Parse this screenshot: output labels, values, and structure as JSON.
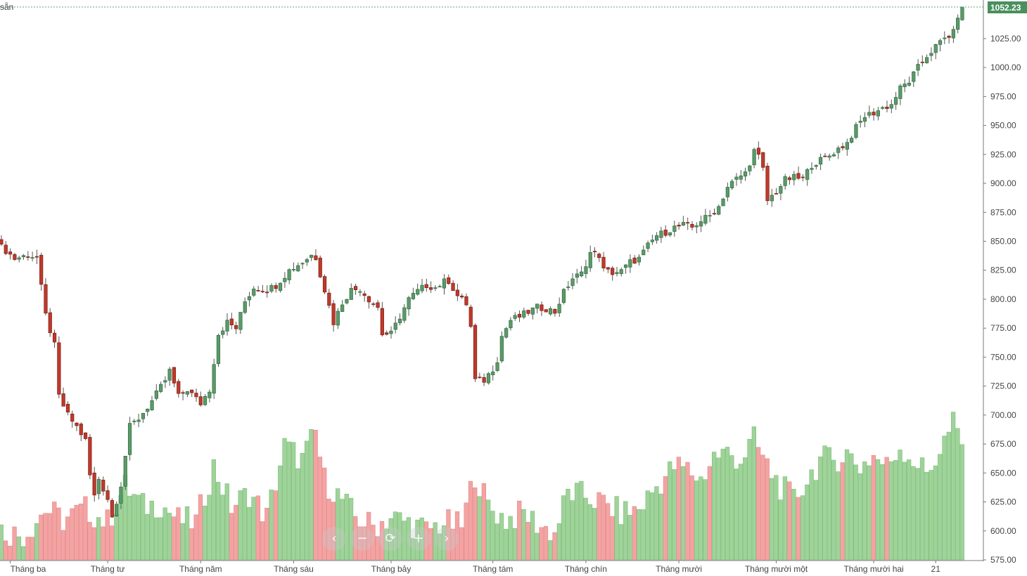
{
  "corner_label": "sẵn",
  "colors": {
    "up_body": "#5b9a6a",
    "up_border": "#2f6b3e",
    "down_body": "#c0392b",
    "down_border": "#7a1f15",
    "vol_up": "#9fd39a",
    "vol_down": "#f4a3a3",
    "price_line": "#5aa57a",
    "axis": "#7a7a7a"
  },
  "nav_buttons": [
    {
      "name": "scroll-left-button",
      "glyph": "‹"
    },
    {
      "name": "zoom-out-button",
      "glyph": "−"
    },
    {
      "name": "reset-button",
      "glyph": "⟳"
    },
    {
      "name": "zoom-in-button",
      "glyph": "+"
    },
    {
      "name": "scroll-right-button",
      "glyph": "›"
    }
  ],
  "chart_data": {
    "type": "candlestick",
    "last_price": 1052.23,
    "last_price_label": "1052.23",
    "y_ticks": [
      "1025.00",
      "1000.00",
      "975.00",
      "950.00",
      "925.00",
      "900.00",
      "875.00",
      "850.00",
      "825.00",
      "800.00",
      "775.00",
      "750.00",
      "725.00",
      "700.00",
      "675.00",
      "650.00",
      "625.00",
      "600.00",
      "575.00"
    ],
    "ylim": [
      575,
      1052.23
    ],
    "x_labels": [
      {
        "label": "Tháng ba",
        "index": 2
      },
      {
        "label": "Tháng tư",
        "index": 24
      },
      {
        "label": "Tháng năm",
        "index": 45
      },
      {
        "label": "Tháng sáu",
        "index": 66
      },
      {
        "label": "Tháng bảy",
        "index": 88
      },
      {
        "label": "Tháng tám",
        "index": 111
      },
      {
        "label": "Tháng chín",
        "index": 132
      },
      {
        "label": "Tháng mười",
        "index": 153
      },
      {
        "label": "Tháng mười một",
        "index": 175
      },
      {
        "label": "Tháng mười hai",
        "index": 197
      },
      {
        "label": "21",
        "index": 211
      }
    ],
    "key_closes": [
      [
        0,
        845
      ],
      [
        1,
        842
      ],
      [
        3,
        835
      ],
      [
        6,
        838
      ],
      [
        8,
        836
      ],
      [
        9,
        810
      ],
      [
        10,
        786
      ],
      [
        12,
        760
      ],
      [
        13,
        716
      ],
      [
        15,
        700
      ],
      [
        17,
        690
      ],
      [
        19,
        678
      ],
      [
        20,
        648
      ],
      [
        21,
        630
      ],
      [
        22,
        645
      ],
      [
        24,
        628
      ],
      [
        25,
        612
      ],
      [
        27,
        640
      ],
      [
        29,
        690
      ],
      [
        31,
        697
      ],
      [
        34,
        712
      ],
      [
        37,
        730
      ],
      [
        38,
        738
      ],
      [
        40,
        716
      ],
      [
        42,
        722
      ],
      [
        44,
        714
      ],
      [
        45,
        710
      ],
      [
        47,
        722
      ],
      [
        49,
        770
      ],
      [
        51,
        780
      ],
      [
        53,
        775
      ],
      [
        55,
        798
      ],
      [
        57,
        810
      ],
      [
        60,
        808
      ],
      [
        62,
        812
      ],
      [
        65,
        825
      ],
      [
        68,
        832
      ],
      [
        70,
        838
      ],
      [
        71,
        836
      ],
      [
        73,
        808
      ],
      [
        75,
        780
      ],
      [
        77,
        797
      ],
      [
        79,
        808
      ],
      [
        81,
        809
      ],
      [
        83,
        800
      ],
      [
        85,
        793
      ],
      [
        86,
        770
      ],
      [
        88,
        770
      ],
      [
        90,
        785
      ],
      [
        92,
        800
      ],
      [
        94,
        807
      ],
      [
        96,
        812
      ],
      [
        98,
        810
      ],
      [
        100,
        815
      ],
      [
        101,
        816
      ],
      [
        103,
        803
      ],
      [
        105,
        796
      ],
      [
        106,
        776
      ],
      [
        107,
        730
      ],
      [
        109,
        730
      ],
      [
        111,
        740
      ],
      [
        112,
        748
      ],
      [
        113,
        768
      ],
      [
        115,
        782
      ],
      [
        117,
        785
      ],
      [
        119,
        789
      ],
      [
        121,
        793
      ],
      [
        123,
        792
      ],
      [
        125,
        789
      ],
      [
        127,
        806
      ],
      [
        129,
        818
      ],
      [
        131,
        822
      ],
      [
        133,
        840
      ],
      [
        135,
        838
      ],
      [
        136,
        825
      ],
      [
        138,
        823
      ],
      [
        140,
        824
      ],
      [
        142,
        832
      ],
      [
        144,
        835
      ],
      [
        146,
        846
      ],
      [
        148,
        855
      ],
      [
        150,
        858
      ],
      [
        152,
        862
      ],
      [
        154,
        864
      ],
      [
        156,
        862
      ],
      [
        158,
        868
      ],
      [
        160,
        872
      ],
      [
        162,
        880
      ],
      [
        164,
        897
      ],
      [
        166,
        904
      ],
      [
        168,
        909
      ],
      [
        169,
        918
      ],
      [
        170,
        928
      ],
      [
        171,
        923
      ],
      [
        172,
        912
      ],
      [
        173,
        885
      ],
      [
        175,
        893
      ],
      [
        177,
        903
      ],
      [
        179,
        905
      ],
      [
        181,
        904
      ],
      [
        183,
        916
      ],
      [
        185,
        920
      ],
      [
        187,
        924
      ],
      [
        189,
        930
      ],
      [
        191,
        935
      ],
      [
        193,
        948
      ],
      [
        195,
        958
      ],
      [
        197,
        961
      ],
      [
        199,
        965
      ],
      [
        201,
        968
      ],
      [
        203,
        982
      ],
      [
        205,
        988
      ],
      [
        207,
        1000
      ],
      [
        209,
        1010
      ],
      [
        211,
        1018
      ],
      [
        213,
        1025
      ],
      [
        215,
        1030
      ],
      [
        216,
        1045
      ],
      [
        217,
        1052.23
      ]
    ],
    "volume_anchors": [
      [
        0,
        22
      ],
      [
        5,
        18
      ],
      [
        10,
        38
      ],
      [
        14,
        30
      ],
      [
        19,
        38
      ],
      [
        24,
        28
      ],
      [
        28,
        55
      ],
      [
        32,
        40
      ],
      [
        36,
        42
      ],
      [
        40,
        30
      ],
      [
        44,
        28
      ],
      [
        48,
        70
      ],
      [
        52,
        40
      ],
      [
        56,
        50
      ],
      [
        60,
        32
      ],
      [
        64,
        85
      ],
      [
        68,
        75
      ],
      [
        71,
        95
      ],
      [
        73,
        60
      ],
      [
        77,
        45
      ],
      [
        80,
        32
      ],
      [
        84,
        25
      ],
      [
        88,
        32
      ],
      [
        92,
        28
      ],
      [
        96,
        22
      ],
      [
        100,
        28
      ],
      [
        104,
        25
      ],
      [
        107,
        65
      ],
      [
        110,
        40
      ],
      [
        114,
        30
      ],
      [
        118,
        35
      ],
      [
        122,
        25
      ],
      [
        125,
        20
      ],
      [
        128,
        50
      ],
      [
        132,
        48
      ],
      [
        136,
        42
      ],
      [
        140,
        35
      ],
      [
        144,
        38
      ],
      [
        148,
        55
      ],
      [
        152,
        70
      ],
      [
        155,
        68
      ],
      [
        158,
        60
      ],
      [
        161,
        78
      ],
      [
        164,
        80
      ],
      [
        167,
        75
      ],
      [
        170,
        90
      ],
      [
        173,
        70
      ],
      [
        176,
        55
      ],
      [
        179,
        45
      ],
      [
        182,
        60
      ],
      [
        185,
        75
      ],
      [
        188,
        75
      ],
      [
        191,
        80
      ],
      [
        194,
        70
      ],
      [
        197,
        78
      ],
      [
        200,
        70
      ],
      [
        203,
        85
      ],
      [
        206,
        75
      ],
      [
        209,
        65
      ],
      [
        212,
        82
      ],
      [
        215,
        102
      ],
      [
        217,
        85
      ]
    ]
  }
}
